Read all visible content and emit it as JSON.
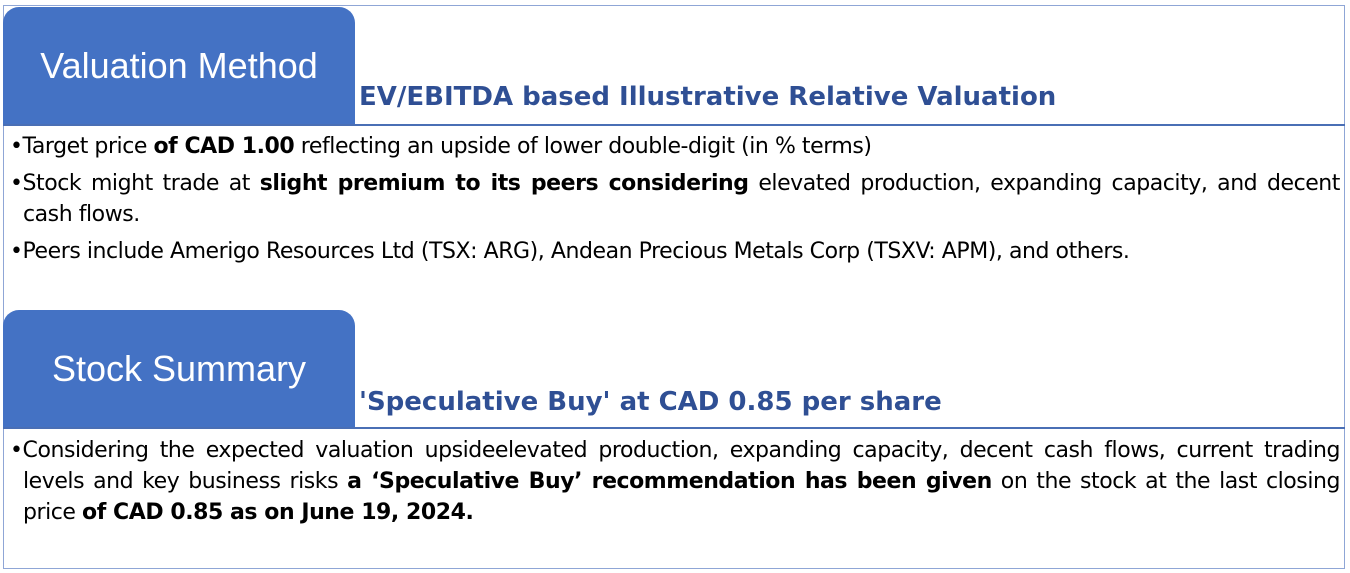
{
  "valuation": {
    "tab_label": "Valuation Method",
    "subtitle": "EV/EBITDA based Illustrative Relative Valuation",
    "bullets": [
      [
        "•Target price ",
        "of CAD 1.00",
        " reflecting an upside of lower double-digit (in % terms)"
      ],
      [
        "•Stock might trade at ",
        "slight premium to its peers considering",
        " elevated production, expanding capacity, and decent cash flows."
      ],
      [
        "•Peers include Amerigo Resources Ltd (TSX: ARG), Andean Precious Metals Corp (TSXV: APM), and others.",
        "",
        ""
      ]
    ]
  },
  "summary": {
    "tab_label": "Stock Summary",
    "subtitle": "'Speculative Buy' at CAD 0.85 per share",
    "bullet": {
      "p1": "•Considering the expected valuation upsideelevated production, expanding capacity, decent cash flows, current trading levels and key business risks ",
      "b1": "a ‘Speculative Buy’ recommendation has been given",
      "p2": " on the stock at the last closing price ",
      "b2": "of CAD 0.85 as on June 19, 2024."
    }
  },
  "colors": {
    "tab": "#4472c4",
    "subtitle": "#2f4f94",
    "rule": "#4a6fb5"
  }
}
